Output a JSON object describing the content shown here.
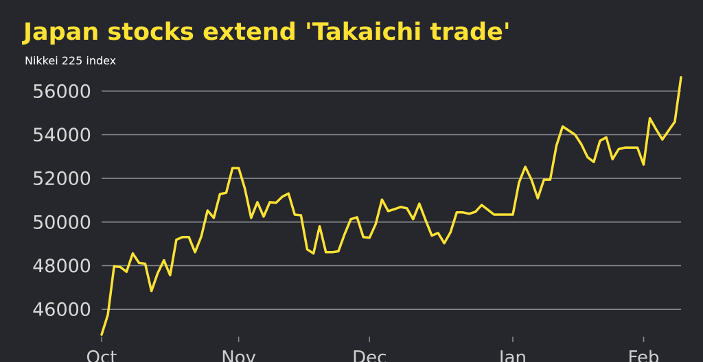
{
  "chart_data": {
    "type": "line",
    "title": "Japan stocks extend 'Takaichi trade'",
    "subtitle": "Nikkei 225 index",
    "categories": [
      "Oct",
      null,
      null,
      null,
      null,
      null,
      null,
      null,
      null,
      null,
      null,
      null,
      null,
      null,
      null,
      null,
      null,
      null,
      null,
      null,
      null,
      null,
      "Nov",
      null,
      null,
      null,
      null,
      null,
      null,
      null,
      null,
      null,
      null,
      null,
      null,
      null,
      null,
      null,
      null,
      null,
      null,
      null,
      null,
      "Dec",
      null,
      null,
      null,
      null,
      null,
      null,
      null,
      null,
      null,
      null,
      null,
      null,
      null,
      null,
      null,
      null,
      null,
      null,
      null,
      null,
      null,
      null,
      "Jan",
      null,
      null,
      null,
      null,
      null,
      null,
      null,
      null,
      null,
      null,
      null,
      null,
      null,
      null,
      null,
      null,
      null,
      null,
      null,
      null,
      "Feb",
      null,
      null,
      null,
      null,
      null,
      null
    ],
    "series": [
      {
        "name": "Nikkei 225",
        "color": "#ffe234",
        "values": [
          44840,
          45750,
          47970,
          47940,
          47720,
          48560,
          48130,
          48090,
          46840,
          47660,
          48250,
          47560,
          49190,
          49310,
          49310,
          48620,
          49340,
          50530,
          50190,
          51280,
          51340,
          52470,
          52470,
          51530,
          50190,
          50910,
          50250,
          50910,
          50880,
          51160,
          51310,
          50340,
          50310,
          48750,
          48560,
          49810,
          48620,
          48620,
          48660,
          49440,
          50130,
          50220,
          49310,
          49280,
          49910,
          51030,
          50500,
          50590,
          50690,
          50630,
          50130,
          50840,
          50090,
          49380,
          49500,
          49030,
          49530,
          50440,
          50440,
          50380,
          50470,
          50780,
          50560,
          50340,
          50340,
          50340,
          50340,
          51810,
          52530,
          51940,
          51090,
          51940,
          51940,
          53500,
          54380,
          54190,
          54000,
          53560,
          52970,
          52750,
          53720,
          53880,
          52880,
          53340,
          53410,
          53410,
          53410,
          52630,
          54750,
          54250,
          53780,
          54190,
          54590,
          56630
        ]
      }
    ],
    "ylim": [
      44750,
      57000
    ],
    "yticks": [
      46000,
      48000,
      50000,
      52000,
      54000,
      56000
    ],
    "grid": true
  }
}
